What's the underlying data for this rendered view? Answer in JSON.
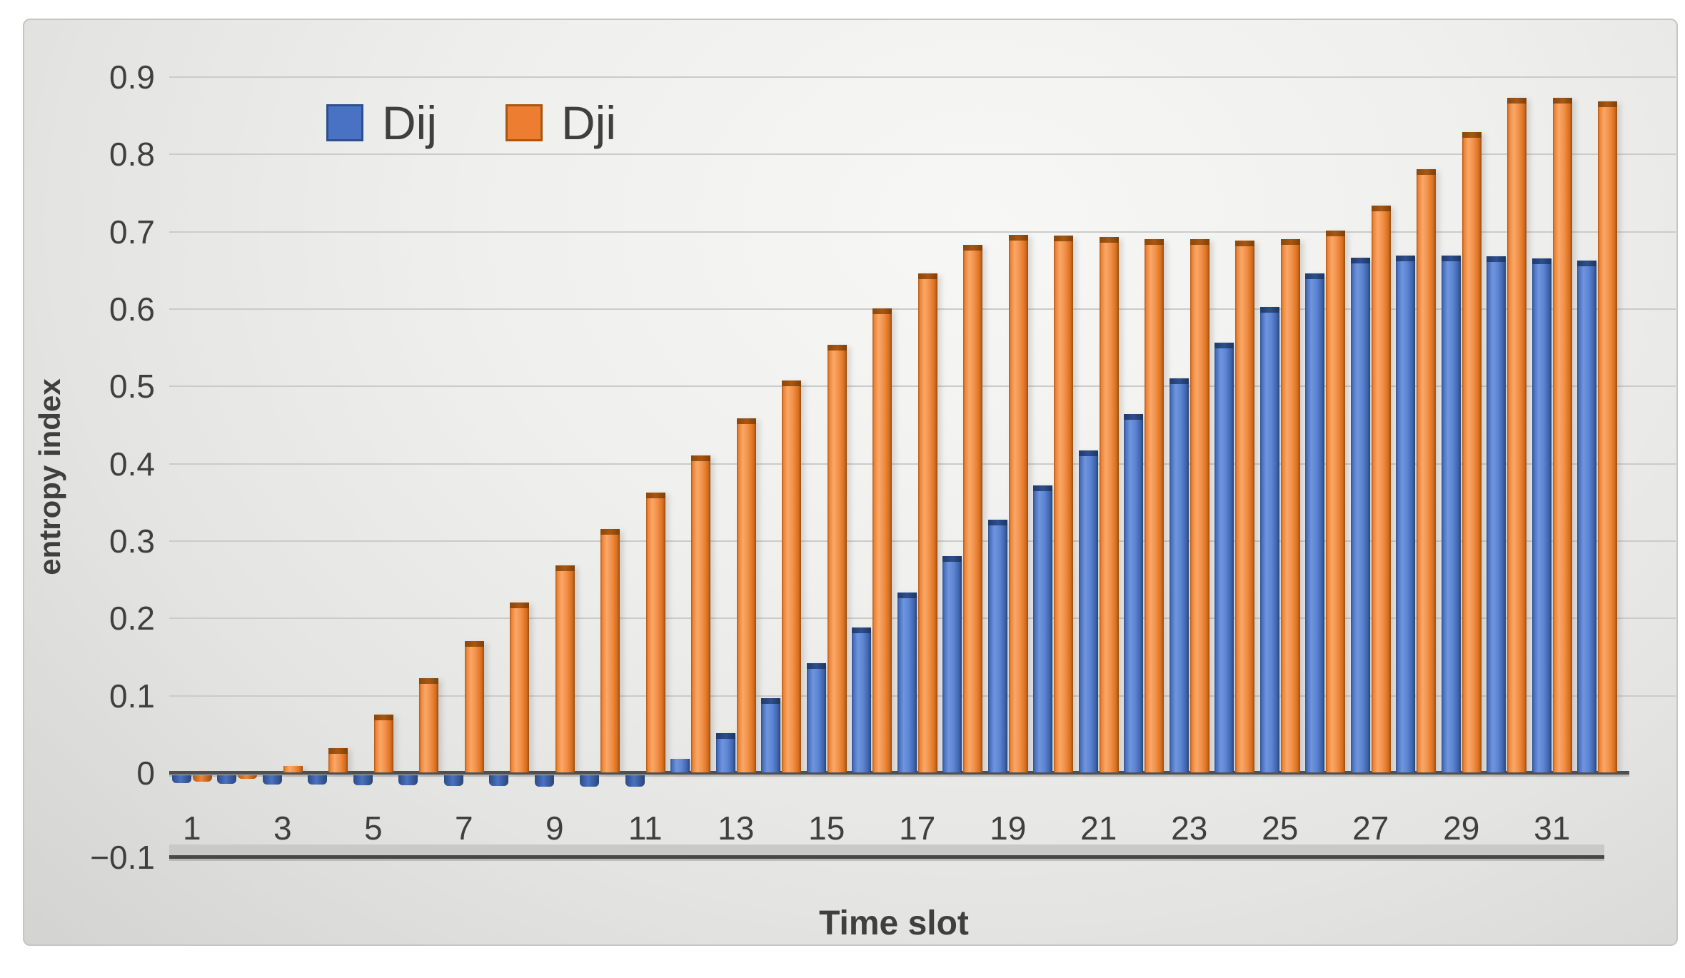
{
  "figure": {
    "kind": "clustered column chart (3-D beveled bars, scanned figure)",
    "background": "light gray panel on white page"
  },
  "legend": {
    "position": "top-left-inside",
    "items": [
      {
        "label": "Dij",
        "color": "#4A72C4"
      },
      {
        "label": "Dji",
        "color": "#ED7D31"
      }
    ]
  },
  "axes": {
    "y_ticks": [
      "0.9",
      "0.8",
      "0.7",
      "0.6",
      "0.5",
      "0.4",
      "0.3",
      "0.2",
      "0.1",
      "0",
      "−0.1"
    ],
    "x_ticks": [
      "1",
      "3",
      "5",
      "7",
      "9",
      "11",
      "13",
      "15",
      "17",
      "19",
      "21",
      "23",
      "25",
      "27",
      "29",
      "31"
    ]
  },
  "colors": {
    "dij_fill": "#4A72C4",
    "dij_cap": "#2E4F8E",
    "dji_fill": "#ED7D31",
    "dji_cap": "#A85711",
    "axis_text": "#3F3F3F",
    "grid_line": "#CBCBC9",
    "axis_line": "#4F4F4F",
    "panel_bg": "#EDEDEB"
  },
  "chart_data": {
    "type": "bar",
    "title": "",
    "xlabel": "Time slot",
    "ylabel": "entropy index",
    "ylim": [
      -0.1,
      0.9
    ],
    "grid": true,
    "legend_position": "top-left-inside",
    "x": [
      1,
      2,
      3,
      4,
      5,
      6,
      7,
      8,
      9,
      10,
      11,
      12,
      13,
      14,
      15,
      16,
      17,
      18,
      19,
      20,
      21,
      22,
      23,
      24,
      25,
      26,
      27,
      28,
      29,
      30,
      31,
      32
    ],
    "series": [
      {
        "name": "Dij",
        "color": "#4A72C4",
        "values": [
          -0.01,
          -0.011,
          -0.012,
          -0.012,
          -0.013,
          -0.013,
          -0.014,
          -0.014,
          -0.015,
          -0.015,
          -0.015,
          0.018,
          0.051,
          0.096,
          0.141,
          0.187,
          0.233,
          0.28,
          0.327,
          0.371,
          0.416,
          0.463,
          0.51,
          0.556,
          0.602,
          0.645,
          0.666,
          0.668,
          0.668,
          0.667,
          0.665,
          0.662
        ]
      },
      {
        "name": "Dji",
        "color": "#ED7D31",
        "values": [
          -0.008,
          -0.005,
          0.008,
          0.031,
          0.075,
          0.122,
          0.17,
          0.22,
          0.268,
          0.315,
          0.362,
          0.41,
          0.458,
          0.507,
          0.553,
          0.6,
          0.645,
          0.682,
          0.695,
          0.694,
          0.692,
          0.69,
          0.69,
          0.688,
          0.69,
          0.701,
          0.733,
          0.78,
          0.828,
          0.872,
          0.872,
          0.868
        ]
      }
    ]
  }
}
